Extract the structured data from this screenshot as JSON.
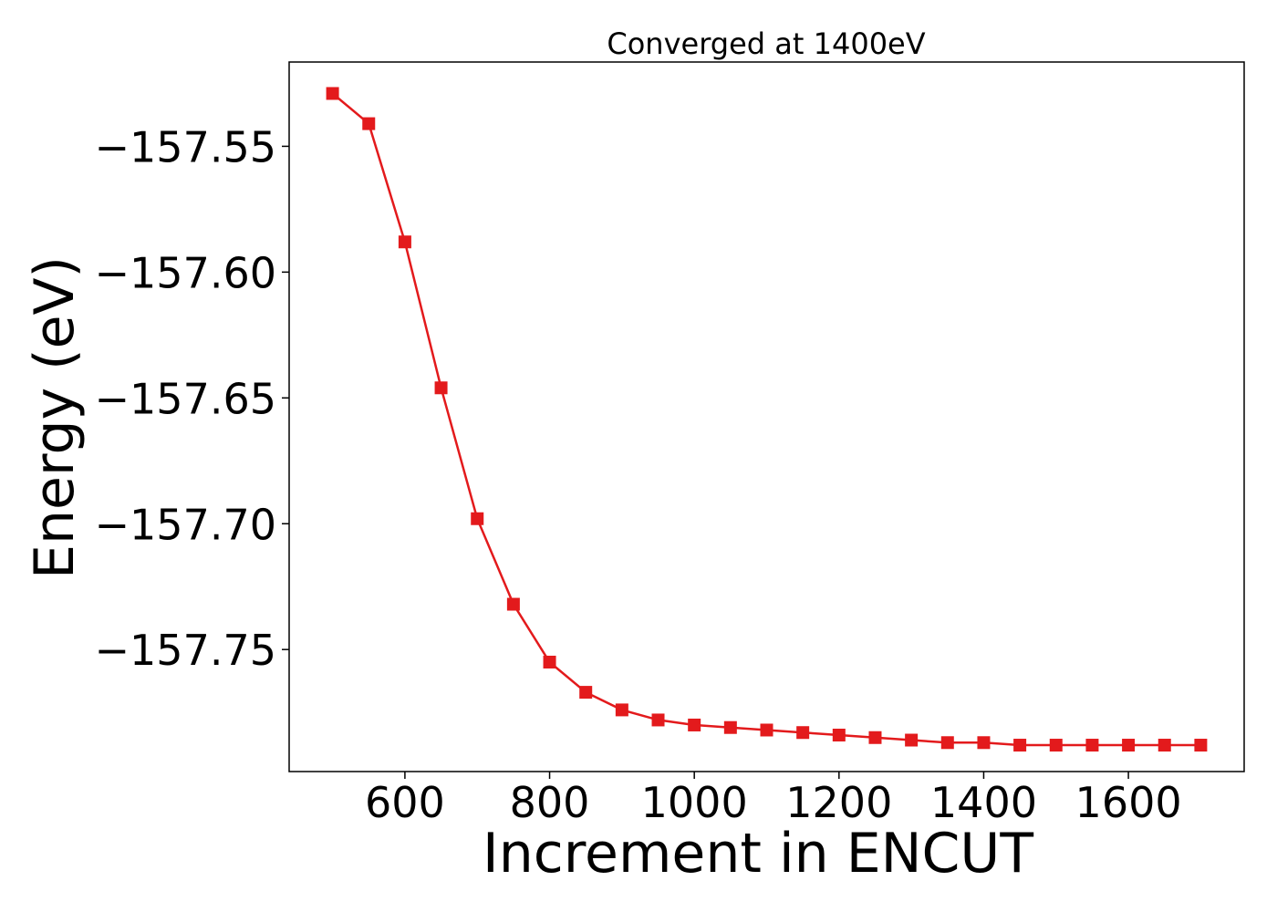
{
  "chart_data": {
    "type": "line",
    "title": "Converged at 1400eV",
    "xlabel": "Increment in ENCUT",
    "ylabel": "Energy (eV)",
    "xlim": [
      440,
      1760
    ],
    "ylim": [
      -157.7985,
      -157.5165
    ],
    "xticks": [
      600,
      800,
      1000,
      1200,
      1400,
      1600
    ],
    "xtick_labels": [
      "600",
      "800",
      "1000",
      "1200",
      "1400",
      "1600"
    ],
    "yticks": [
      -157.55,
      -157.6,
      -157.65,
      -157.7,
      -157.75
    ],
    "ytick_labels": [
      "−157.55",
      "−157.60",
      "−157.65",
      "−157.70",
      "−157.75"
    ],
    "grid": false,
    "series": [
      {
        "color": "#e31a1c",
        "marker": "square",
        "x": [
          500,
          550,
          600,
          650,
          700,
          750,
          800,
          850,
          900,
          950,
          1000,
          1050,
          1100,
          1150,
          1200,
          1250,
          1300,
          1350,
          1400,
          1450,
          1500,
          1550,
          1600,
          1650,
          1700
        ],
        "y": [
          -157.529,
          -157.541,
          -157.588,
          -157.646,
          -157.698,
          -157.732,
          -157.755,
          -157.767,
          -157.774,
          -157.778,
          -157.78,
          -157.781,
          -157.782,
          -157.783,
          -157.784,
          -157.785,
          -157.786,
          -157.787,
          -157.787,
          -157.788,
          -157.788,
          -157.788,
          -157.788,
          -157.788,
          -157.788
        ]
      }
    ]
  }
}
